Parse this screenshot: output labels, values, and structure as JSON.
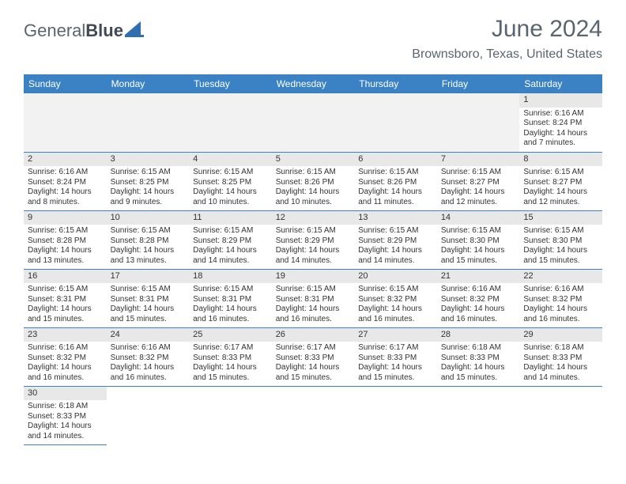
{
  "logo": {
    "word1": "General",
    "word2": "Blue",
    "sail_color": "#2f6fb0",
    "text_color": "#5a6570"
  },
  "title": "June 2024",
  "location": "Brownsboro, Texas, United States",
  "header_bg": "#3b82c4",
  "weekdays": [
    "Sunday",
    "Monday",
    "Tuesday",
    "Wednesday",
    "Thursday",
    "Friday",
    "Saturday"
  ],
  "weeks": [
    [
      null,
      null,
      null,
      null,
      null,
      null,
      {
        "n": "1",
        "sr": "6:16 AM",
        "ss": "8:24 PM",
        "dl": "14 hours and 7 minutes."
      }
    ],
    [
      {
        "n": "2",
        "sr": "6:16 AM",
        "ss": "8:24 PM",
        "dl": "14 hours and 8 minutes."
      },
      {
        "n": "3",
        "sr": "6:15 AM",
        "ss": "8:25 PM",
        "dl": "14 hours and 9 minutes."
      },
      {
        "n": "4",
        "sr": "6:15 AM",
        "ss": "8:25 PM",
        "dl": "14 hours and 10 minutes."
      },
      {
        "n": "5",
        "sr": "6:15 AM",
        "ss": "8:26 PM",
        "dl": "14 hours and 10 minutes."
      },
      {
        "n": "6",
        "sr": "6:15 AM",
        "ss": "8:26 PM",
        "dl": "14 hours and 11 minutes."
      },
      {
        "n": "7",
        "sr": "6:15 AM",
        "ss": "8:27 PM",
        "dl": "14 hours and 12 minutes."
      },
      {
        "n": "8",
        "sr": "6:15 AM",
        "ss": "8:27 PM",
        "dl": "14 hours and 12 minutes."
      }
    ],
    [
      {
        "n": "9",
        "sr": "6:15 AM",
        "ss": "8:28 PM",
        "dl": "14 hours and 13 minutes."
      },
      {
        "n": "10",
        "sr": "6:15 AM",
        "ss": "8:28 PM",
        "dl": "14 hours and 13 minutes."
      },
      {
        "n": "11",
        "sr": "6:15 AM",
        "ss": "8:29 PM",
        "dl": "14 hours and 14 minutes."
      },
      {
        "n": "12",
        "sr": "6:15 AM",
        "ss": "8:29 PM",
        "dl": "14 hours and 14 minutes."
      },
      {
        "n": "13",
        "sr": "6:15 AM",
        "ss": "8:29 PM",
        "dl": "14 hours and 14 minutes."
      },
      {
        "n": "14",
        "sr": "6:15 AM",
        "ss": "8:30 PM",
        "dl": "14 hours and 15 minutes."
      },
      {
        "n": "15",
        "sr": "6:15 AM",
        "ss": "8:30 PM",
        "dl": "14 hours and 15 minutes."
      }
    ],
    [
      {
        "n": "16",
        "sr": "6:15 AM",
        "ss": "8:31 PM",
        "dl": "14 hours and 15 minutes."
      },
      {
        "n": "17",
        "sr": "6:15 AM",
        "ss": "8:31 PM",
        "dl": "14 hours and 15 minutes."
      },
      {
        "n": "18",
        "sr": "6:15 AM",
        "ss": "8:31 PM",
        "dl": "14 hours and 16 minutes."
      },
      {
        "n": "19",
        "sr": "6:15 AM",
        "ss": "8:31 PM",
        "dl": "14 hours and 16 minutes."
      },
      {
        "n": "20",
        "sr": "6:15 AM",
        "ss": "8:32 PM",
        "dl": "14 hours and 16 minutes."
      },
      {
        "n": "21",
        "sr": "6:16 AM",
        "ss": "8:32 PM",
        "dl": "14 hours and 16 minutes."
      },
      {
        "n": "22",
        "sr": "6:16 AM",
        "ss": "8:32 PM",
        "dl": "14 hours and 16 minutes."
      }
    ],
    [
      {
        "n": "23",
        "sr": "6:16 AM",
        "ss": "8:32 PM",
        "dl": "14 hours and 16 minutes."
      },
      {
        "n": "24",
        "sr": "6:16 AM",
        "ss": "8:32 PM",
        "dl": "14 hours and 16 minutes."
      },
      {
        "n": "25",
        "sr": "6:17 AM",
        "ss": "8:33 PM",
        "dl": "14 hours and 15 minutes."
      },
      {
        "n": "26",
        "sr": "6:17 AM",
        "ss": "8:33 PM",
        "dl": "14 hours and 15 minutes."
      },
      {
        "n": "27",
        "sr": "6:17 AM",
        "ss": "8:33 PM",
        "dl": "14 hours and 15 minutes."
      },
      {
        "n": "28",
        "sr": "6:18 AM",
        "ss": "8:33 PM",
        "dl": "14 hours and 15 minutes."
      },
      {
        "n": "29",
        "sr": "6:18 AM",
        "ss": "8:33 PM",
        "dl": "14 hours and 14 minutes."
      }
    ],
    [
      {
        "n": "30",
        "sr": "6:18 AM",
        "ss": "8:33 PM",
        "dl": "14 hours and 14 minutes."
      },
      null,
      null,
      null,
      null,
      null,
      null
    ]
  ],
  "labels": {
    "sunrise": "Sunrise:",
    "sunset": "Sunset:",
    "daylight": "Daylight:"
  }
}
